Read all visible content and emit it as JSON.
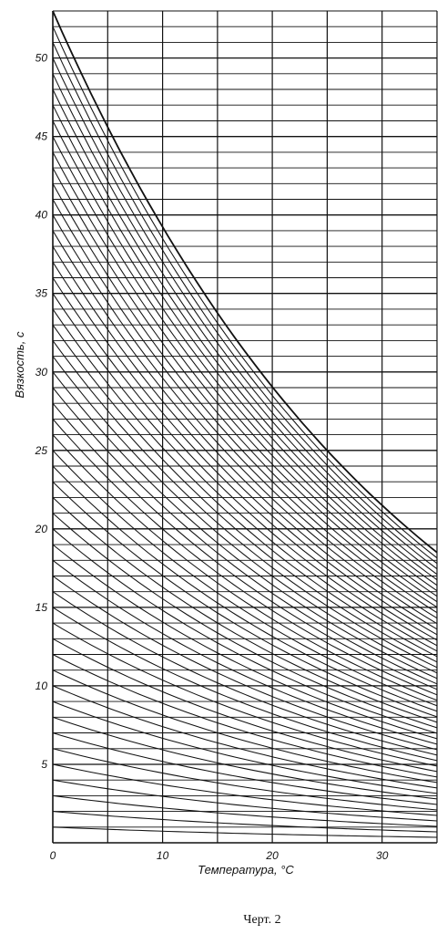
{
  "chart_data": {
    "type": "line",
    "xlabel": "Температура, °С",
    "ylabel": "Вязкость, с",
    "caption": "Черт. 2",
    "xlim": [
      0,
      35
    ],
    "ylim": [
      0,
      53
    ],
    "x_ticks": [
      0,
      10,
      20,
      30
    ],
    "x_tick_labels": [
      "0",
      "10",
      "20",
      "30"
    ],
    "y_ticks": [
      5,
      10,
      15,
      20,
      25,
      30,
      35,
      40,
      45,
      50
    ],
    "y_tick_labels": [
      "5",
      "10",
      "15",
      "20",
      "25",
      "30",
      "35",
      "40",
      "45",
      "50"
    ],
    "x_grid_step": 5,
    "y_grid_step": 1,
    "grid": true,
    "family": {
      "description_values": "Viscosity curves v(t) = v0 * exp(-k * t); v0 from 1 to 53 in steps of 1",
      "v0_start": 1,
      "v0_end": 53,
      "v0_step": 1,
      "envelope": {
        "x": [
          0,
          35
        ],
        "y": [
          53,
          18.5
        ]
      }
    }
  }
}
